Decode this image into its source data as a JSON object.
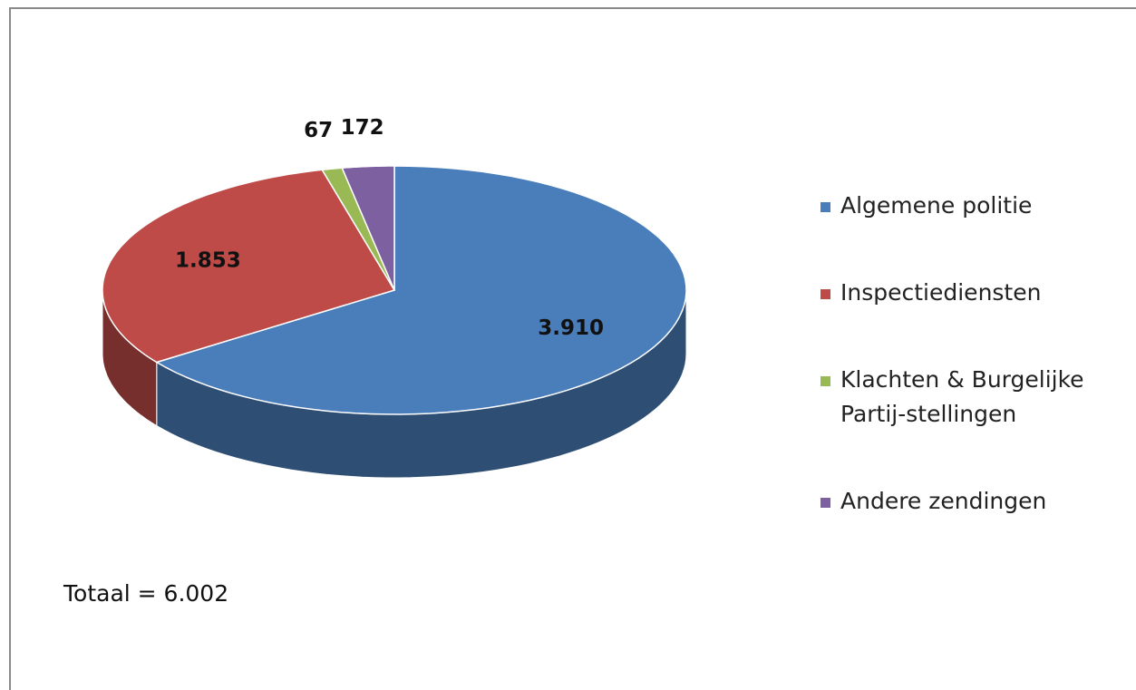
{
  "chart_data": {
    "type": "pie",
    "categories": [
      "Algemene politie",
      "Inspectiediensten",
      "Klachten & Burgelijke Partij-stellingen",
      "Andere zendingen"
    ],
    "values": [
      3910,
      1853,
      67,
      172
    ],
    "value_labels": [
      "3.910",
      "1.853",
      "67",
      "172"
    ],
    "colors": [
      "#4a7ebb",
      "#be4b48",
      "#98b954",
      "#7d60a0"
    ],
    "legend": "right",
    "annotation": "Totaal = 6.002"
  }
}
